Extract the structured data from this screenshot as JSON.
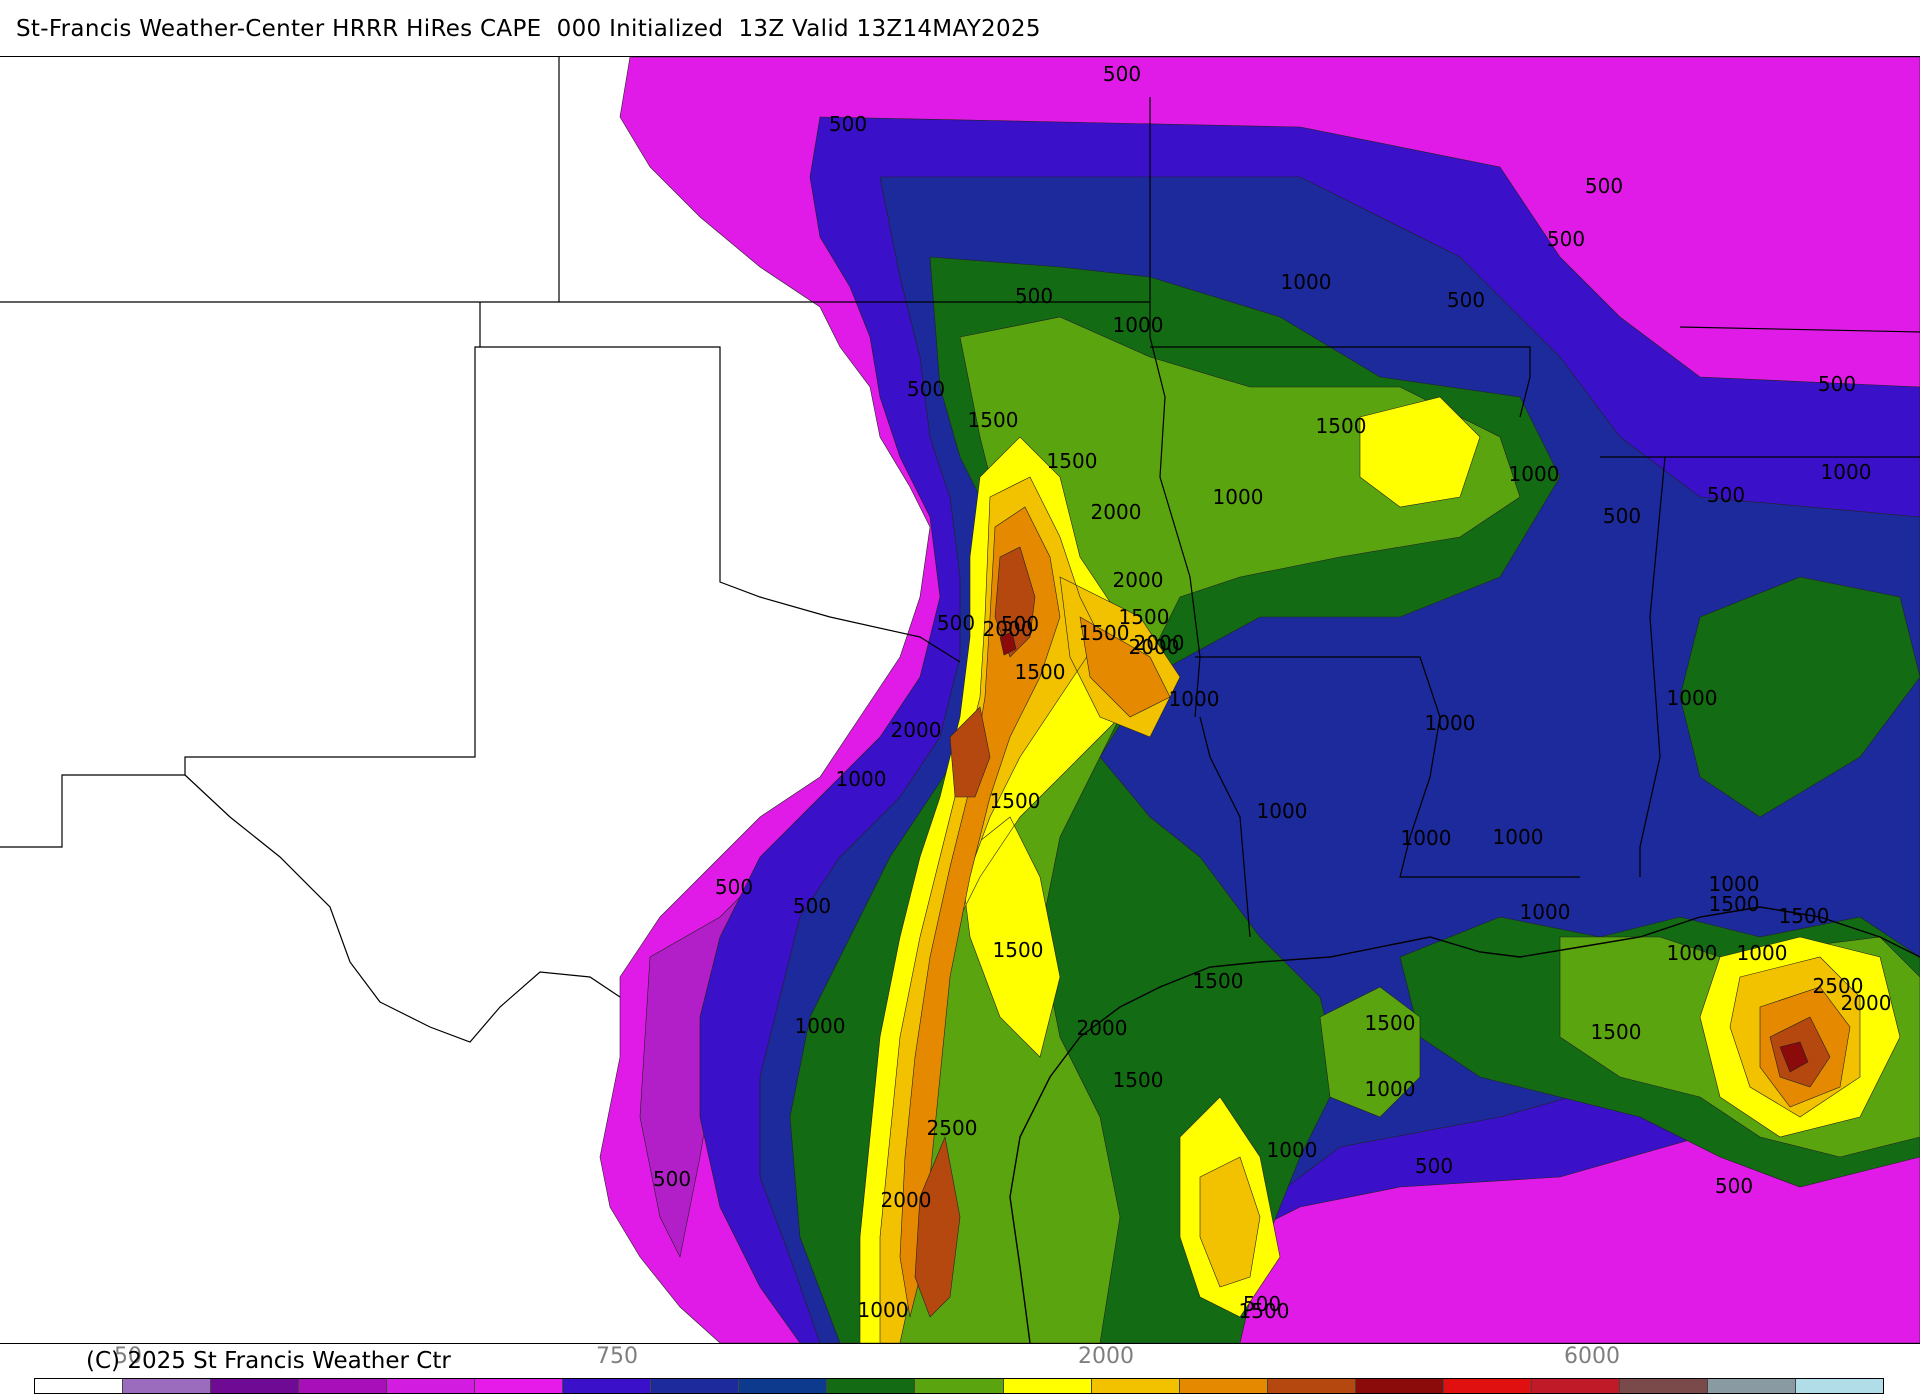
{
  "title": "St-Francis Weather-Center HRRR HiRes CAPE  000 Initialized  13Z Valid 13Z14MAY2025",
  "copyright": "(C) 2025 St Francis Weather Ctr",
  "scale": {
    "tick_labels": [
      "50",
      "750",
      "2000",
      "6000"
    ],
    "colors": [
      "#ffffff",
      "#9b6bbe",
      "#6f0a94",
      "#a80fb8",
      "#d21de0",
      "#e61bea",
      "#3a10c8",
      "#1c2a9c",
      "#0d3a8c",
      "#136b14",
      "#5aa50f",
      "#ffff00",
      "#f2c200",
      "#e58a00",
      "#b4480f",
      "#8b0a0a",
      "#e01010",
      "#c01a28",
      "#7a4a4a",
      "#8a9aa2",
      "#b0dde8"
    ]
  },
  "contour_labels": [
    "500",
    "500",
    "500",
    "500",
    "500",
    "500",
    "500",
    "500",
    "500",
    "500",
    "500",
    "500",
    "500",
    "500",
    "500",
    "500",
    "500",
    "500",
    "1000",
    "1000",
    "1000",
    "1000",
    "1000",
    "1000",
    "1000",
    "1000",
    "1000",
    "1000",
    "1000",
    "1000",
    "1000",
    "1000",
    "1000",
    "1000",
    "1000",
    "1000",
    "1000",
    "1000",
    "1500",
    "1500",
    "1500",
    "1500",
    "1500",
    "1500",
    "1500",
    "1500",
    "1500",
    "1500",
    "1500",
    "1500",
    "1500",
    "1500",
    "1500",
    "2000",
    "2000",
    "2000",
    "2000",
    "2000",
    "2000",
    "2000",
    "2000",
    "2000",
    "2500",
    "2500"
  ],
  "fill_colors": {
    "magenta": "#e01be8",
    "violet": "#b21ec8",
    "indigo": "#3a10c8",
    "navy": "#1c2a9c",
    "dark_green": "#136b14",
    "green": "#5aa50f",
    "yellow": "#ffff00",
    "gold": "#f2c200",
    "orange": "#e58a00",
    "brown": "#b4480f",
    "dark_red": "#8b0a0a"
  }
}
